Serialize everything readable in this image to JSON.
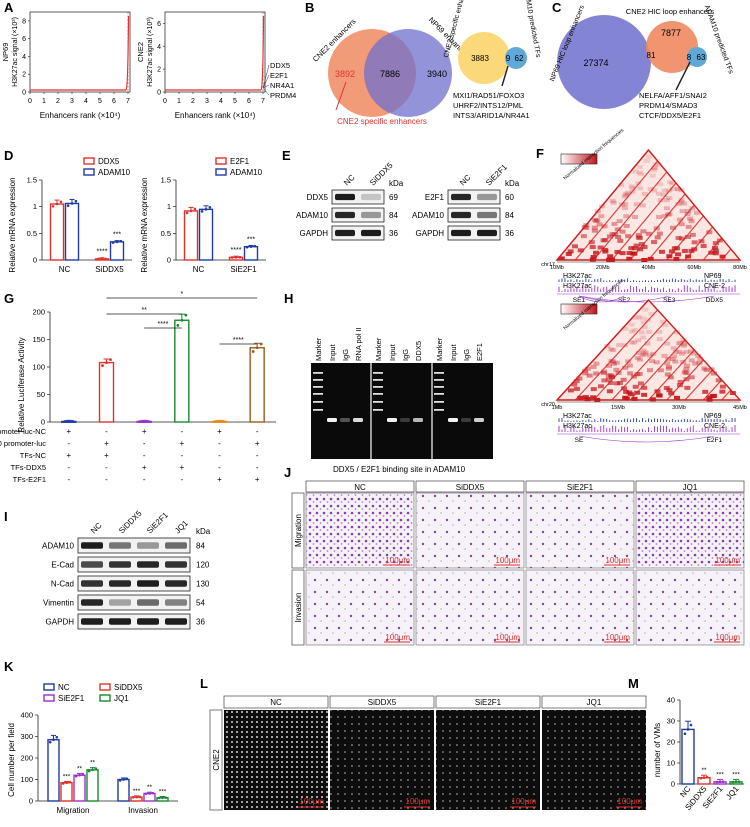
{
  "panels": [
    "A",
    "B",
    "C",
    "D",
    "E",
    "F",
    "G",
    "H",
    "I",
    "J",
    "K",
    "L",
    "M"
  ],
  "colors": {
    "red": "#e2312b",
    "blue": "#1f3aa6",
    "purple": "#9b30c8",
    "green": "#1a8a2e",
    "orange": "#e48a16",
    "brown": "#9a5b1c",
    "venn_orange": "#ef8a62",
    "venn_purple": "#7b7bd0",
    "venn_yellow": "#fbd97a",
    "venn_blue": "#5fa8d8"
  },
  "panel_a": {
    "left": {
      "ylabel_cell": "NP69",
      "ylabel_unit": "H3K27ac signal (×10³)",
      "yticks": [
        "0",
        "2",
        "4",
        "6",
        "8"
      ],
      "xticks": [
        "0",
        "1",
        "2",
        "3",
        "4",
        "5",
        "6",
        "7"
      ],
      "xlabel": "Enhancers rank (×10⁴)"
    },
    "right": {
      "ylabel_cell": "CNE2",
      "ylabel_unit": "H3K27ac signal (×10³)",
      "yticks": [
        "0",
        "2",
        "4",
        "6"
      ],
      "xticks": [
        "0",
        "1",
        "2",
        "3",
        "4",
        "5",
        "6",
        "7"
      ],
      "xlabel": "Enhancers rank (×10⁴)",
      "genes": [
        "DDX5",
        "E2F1",
        "NR4A1",
        "PRDM4"
      ]
    }
  },
  "panel_b": {
    "v1": {
      "label_left": "CNE2 enhancers",
      "label_right": "NP69 enhancers",
      "left_only": "3892",
      "overlap": "7886",
      "right_only": "3940",
      "note": "CNE2 specific enhancers"
    },
    "v2": {
      "label_left": "CNE2 specific enhancers",
      "label_right": "ADAM10 predicted TFs",
      "left_only": "3883",
      "overlap": "9",
      "right_only": "62",
      "tfs": [
        "MXI1/RAD51/FOXO3",
        "UHRF2/INTS12/PML",
        "INTS3/ARID1A/NR4A1"
      ]
    }
  },
  "panel_c": {
    "label_a": "NP69 HIC loop enhancers",
    "label_b": "CNE2 HIC loop enhancers",
    "label_c": "ADAM10 predicted TFs",
    "n_a": "27374",
    "n_ab": "81",
    "n_b": "7877",
    "n_bc": "8",
    "n_c": "63",
    "tfs": [
      "NELFA/AFF1/SNAI2",
      "PRDM14/SMAD3",
      "CTCF/DDX5/E2F1"
    ]
  },
  "panel_d": {
    "ylabel": "Relative mRNA expression",
    "left": {
      "legend": [
        "DDX5",
        "ADAM10"
      ],
      "groups": [
        "NC",
        "SiDDX5"
      ],
      "yticks": [
        "0",
        "0.5",
        "1",
        "1.5"
      ],
      "sig": [
        "****",
        "***"
      ]
    },
    "right": {
      "legend": [
        "E2F1",
        "ADAM10"
      ],
      "groups": [
        "NC",
        "SiE2F1"
      ],
      "yticks": [
        "0",
        "0.5",
        "1",
        "1.5"
      ],
      "sig": [
        "****",
        "***"
      ]
    }
  },
  "panel_e": {
    "left": {
      "lanes": [
        "NC",
        "SiDDX5"
      ],
      "unit": "kDa",
      "rows": [
        {
          "name": "DDX5",
          "kda": "69"
        },
        {
          "name": "ADAM10",
          "kda": "84"
        },
        {
          "name": "GAPDH",
          "kda": "36"
        }
      ]
    },
    "right": {
      "lanes": [
        "NC",
        "SiE2F1"
      ],
      "unit": "kDa",
      "rows": [
        {
          "name": "E2F1",
          "kda": "60"
        },
        {
          "name": "ADAM10",
          "kda": "84"
        },
        {
          "name": "GAPDH",
          "kda": "36"
        }
      ]
    }
  },
  "panel_f": {
    "legend": "Normalized interaction frequencies",
    "top": {
      "chr": "chr17",
      "ticks": [
        "10Mb",
        "20Mb",
        "40Mb",
        "60Mb",
        "80Mb"
      ],
      "tracks": [
        {
          "name": "H3K27ac",
          "cell": "NP69"
        },
        {
          "name": "H3K27ac",
          "cell": "CNE-2"
        }
      ],
      "marks": [
        "SE1",
        "SE2",
        "SE3",
        "DDX5"
      ]
    },
    "bottom": {
      "chr": "chr20",
      "ticks": [
        "1Mb",
        "15Mb",
        "30Mb",
        "45Mb"
      ],
      "tracks": [
        {
          "name": "H3K27ac",
          "cell": "NP69"
        },
        {
          "name": "H3K27ac",
          "cell": "CNE-2"
        }
      ],
      "marks": [
        "SE",
        "E2F1"
      ]
    }
  },
  "panel_g": {
    "ylabel": "Relative Luciferase Activity",
    "yticks": [
      "0",
      "50",
      "100",
      "150",
      "200"
    ],
    "rows": [
      {
        "label": "promoter-luc-NC",
        "signs": [
          "+",
          "-",
          "+",
          "-",
          "+",
          "-"
        ]
      },
      {
        "label": "ADAM10 promoter-luc",
        "signs": [
          "-",
          "+",
          "-",
          "+",
          "-",
          "+"
        ]
      },
      {
        "label": "TFs-NC",
        "signs": [
          "+",
          "+",
          "-",
          "-",
          "-",
          "-"
        ]
      },
      {
        "label": "TFs-DDX5",
        "signs": [
          "-",
          "-",
          "+",
          "+",
          "-",
          "-"
        ]
      },
      {
        "label": "TFs-E2F1",
        "signs": [
          "-",
          "-",
          "-",
          "-",
          "+",
          "+"
        ]
      }
    ],
    "sig": [
      "*",
      "**",
      "****",
      "****"
    ]
  },
  "panel_h": {
    "lanes": [
      "Marker",
      "Input",
      "IgG",
      "RNA pol II",
      "Marker",
      "Input",
      "IgG",
      "DDX5",
      "Marker",
      "Input",
      "IgG",
      "E2F1"
    ],
    "caption": "DDX5 / E2F1 binding site in ADAM10"
  },
  "panel_i": {
    "lanes": [
      "NC",
      "SiDDX5",
      "SiE2F1",
      "JQ1"
    ],
    "unit": "kDa",
    "rows": [
      {
        "name": "ADAM10",
        "kda": "84"
      },
      {
        "name": "E-Cad",
        "kda": "120"
      },
      {
        "name": "N-Cad",
        "kda": "130"
      },
      {
        "name": "Vimentin",
        "kda": "54"
      },
      {
        "name": "GAPDH",
        "kda": "36"
      }
    ]
  },
  "panel_j": {
    "columns": [
      "NC",
      "SiDDX5",
      "SiE2F1",
      "JQ1"
    ],
    "rows": [
      "Migration",
      "Invasion"
    ],
    "scale": "100μm"
  },
  "panel_k": {
    "ylabel": "Cell number per field",
    "legend": [
      "NC",
      "SiDDX5",
      "SiE2F1",
      "JQ1"
    ],
    "yticks": [
      "0",
      "100",
      "200",
      "300",
      "400"
    ],
    "sig_migration": [
      "***",
      "**",
      "**"
    ],
    "sig_invasion": [
      "***",
      "**",
      "***"
    ]
  },
  "panel_l": {
    "columns": [
      "NC",
      "SiDDX5",
      "SiE2F1",
      "JQ1"
    ],
    "row": "CNE2",
    "scale": "100μm"
  },
  "panel_m": {
    "ylabel": "number of VMs",
    "yticks": [
      "0",
      "10",
      "20",
      "30",
      "40"
    ],
    "groups": [
      "NC",
      "SiDDX5",
      "SiE2F1",
      "JQ1"
    ],
    "sig": [
      "**",
      "***",
      "***"
    ]
  },
  "chart_data": [
    {
      "type": "bar",
      "title": "D (left)",
      "categories": [
        "NC",
        "SiDDX5"
      ],
      "ylabel": "Relative mRNA expression",
      "ylim": [
        0,
        1.5
      ],
      "series": [
        {
          "name": "DDX5",
          "values": [
            1.05,
            0.02
          ]
        },
        {
          "name": "ADAM10",
          "values": [
            1.06,
            0.34
          ]
        }
      ]
    },
    {
      "type": "bar",
      "title": "D (right)",
      "categories": [
        "NC",
        "SiE2F1"
      ],
      "ylabel": "Relative mRNA expression",
      "ylim": [
        0,
        1.5
      ],
      "series": [
        {
          "name": "E2F1",
          "values": [
            0.92,
            0.05
          ]
        },
        {
          "name": "ADAM10",
          "values": [
            0.95,
            0.25
          ]
        }
      ]
    },
    {
      "type": "bar",
      "title": "G",
      "categories": [
        "1",
        "2",
        "3",
        "4",
        "5",
        "6"
      ],
      "ylabel": "Relative Luciferase Activity",
      "ylim": [
        0,
        200
      ],
      "series": [
        {
          "name": "Luciferase",
          "values": [
            1,
            108,
            1,
            185,
            1,
            135
          ]
        }
      ]
    },
    {
      "type": "bar",
      "title": "K",
      "categories": [
        "Migration",
        "Invasion"
      ],
      "ylabel": "Cell number per field",
      "ylim": [
        0,
        400
      ],
      "series": [
        {
          "name": "NC",
          "values": [
            285,
            100
          ]
        },
        {
          "name": "SiDDX5",
          "values": [
            85,
            18
          ]
        },
        {
          "name": "SiE2F1",
          "values": [
            120,
            35
          ]
        },
        {
          "name": "JQ1",
          "values": [
            145,
            15
          ]
        }
      ]
    },
    {
      "type": "bar",
      "title": "M",
      "categories": [
        "NC",
        "SiDDX5",
        "SiE2F1",
        "JQ1"
      ],
      "ylabel": "number of VMs",
      "ylim": [
        0,
        40
      ],
      "series": [
        {
          "name": "VMs",
          "values": [
            26,
            3,
            1,
            1
          ]
        }
      ]
    }
  ]
}
